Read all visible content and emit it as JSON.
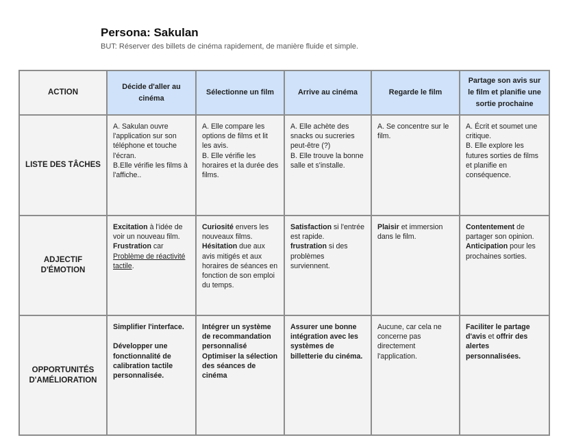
{
  "header": {
    "title": "Persona: Sakulan",
    "subtitle": "BUT: Réserver des billets de cinéma rapidement, de manière fluide et simple."
  },
  "table": {
    "corner": "ACTION",
    "columns": [
      "Décide d'aller au cinéma",
      "Sélectionne un film",
      "Arrive au cinéma",
      "Regarde le film",
      "Partage son avis sur le film  et planifie une sortie prochaine"
    ],
    "rows": [
      {
        "label": "LISTE DES TÂCHES",
        "cells": [
          [
            [
              {
                "t": "A. Sakulan ouvre l'application sur son téléphone et touche l'écran."
              }
            ],
            [
              {
                "t": "B.Elle vérifie les films à l'affiche.."
              }
            ]
          ],
          [
            [
              {
                "t": "A. Elle compare les options de films et lit les avis."
              }
            ],
            [
              {
                "t": "B. Elle vérifie  les horaires et la durée des films."
              }
            ]
          ],
          [
            [
              {
                "t": "A. Elle achète des snacks ou sucreries peut-être (?)"
              }
            ],
            [
              {
                "t": "B. Elle trouve  la bonne salle et s'installe."
              }
            ]
          ],
          [
            [
              {
                "t": "A. Se concentre sur le film."
              }
            ]
          ],
          [
            [
              {
                "t": "A. Écrit  et soumet une critique."
              }
            ],
            [
              {
                "t": "B. Elle explore les futures sorties de films et planifie en conséquence."
              }
            ]
          ]
        ]
      },
      {
        "label": "ADJECTIF D'ÉMOTION",
        "cells": [
          [
            [
              {
                "t": "Excitation",
                "b": true
              },
              {
                "t": " à l'idée de voir un nouveau film."
              }
            ],
            [
              {
                "t": "Frustration",
                "b": true
              },
              {
                "t": " car "
              },
              {
                "t": "Problème de réactivité tactile",
                "u": true
              },
              {
                "t": "."
              }
            ]
          ],
          [
            [
              {
                "t": "Curiosité",
                "b": true
              },
              {
                "t": " envers les nouveaux films."
              }
            ],
            [
              {
                "t": "Hésitation",
                "b": true
              },
              {
                "t": " due aux avis mitigés et aux horaires de séances en fonction de son emploi du temps."
              }
            ]
          ],
          [
            [
              {
                "t": "Satisfaction",
                "b": true
              },
              {
                "t": " si l'entrée est rapide."
              }
            ],
            [
              {
                "t": "frustration",
                "b": true
              },
              {
                "t": " si des problèmes surviennent."
              }
            ]
          ],
          [
            [
              {
                "t": "Plaisir",
                "b": true
              },
              {
                "t": " et immersion dans le film."
              }
            ]
          ],
          [
            [
              {
                "t": "Contentement",
                "b": true
              },
              {
                "t": " de partager son opinion."
              }
            ],
            [
              {
                "t": "Anticipation",
                "b": true
              },
              {
                "t": " pour les prochaines sorties."
              }
            ]
          ]
        ]
      },
      {
        "label": "OPPORTUNITÉS D'AMÉLIORATION",
        "cells": [
          [
            [
              {
                "t": "Simplifier l'interface.",
                "b": true
              }
            ],
            [
              {
                "t": " "
              }
            ],
            [
              {
                "t": "Développer une fonctionnalité de calibration tactile personnalisée.",
                "b": true
              }
            ]
          ],
          [
            [
              {
                "t": "Intégrer un système de recommandation personnalisé",
                "b": true
              }
            ],
            [
              {
                "t": "Optimiser la sélection des séances de cinéma",
                "b": true
              }
            ]
          ],
          [
            [
              {
                "t": "Assurer une bonne intégration avec les systèmes de billetterie du cinéma.",
                "b": true
              }
            ]
          ],
          [
            [
              {
                "t": "Aucune, car cela ne concerne pas directement l'application."
              }
            ]
          ],
          [
            [
              {
                "t": "Faciliter le partage d'avis",
                "b": true
              },
              {
                "t": " et "
              },
              {
                "t": "offrir des alertes personnalisées.",
                "b": true
              }
            ]
          ]
        ]
      }
    ]
  },
  "colors": {
    "header_fill": "#cfe2f9",
    "cell_fill": "#f3f3f3",
    "border": "#8c8c8c"
  }
}
